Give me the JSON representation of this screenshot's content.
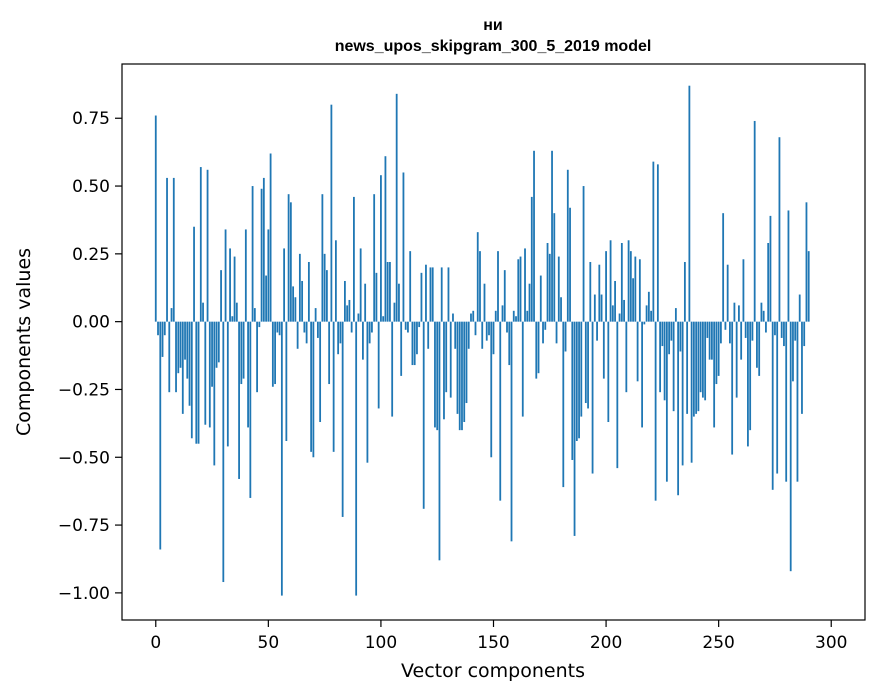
{
  "chart_data": {
    "type": "bar",
    "title_line1": "ни",
    "title_line2": "news_upos_skipgram_300_5_2019 model",
    "xlabel": "Vector components",
    "ylabel": "Components values",
    "xlim": [
      -15,
      315
    ],
    "ylim": [
      -1.1,
      0.95
    ],
    "xticks": [
      0,
      50,
      100,
      150,
      200,
      250,
      300
    ],
    "yticks": [
      0.75,
      0.5,
      0.25,
      0.0,
      -0.25,
      -0.5,
      -0.75,
      -1.0
    ],
    "ytick_labels": [
      "0.75",
      "0.50",
      "0.25",
      "0.00",
      "−0.25",
      "−0.50",
      "−0.75",
      "−1.00"
    ],
    "bar_color": "#1f77b4",
    "grid": false,
    "values": [
      0.76,
      -0.05,
      -0.84,
      -0.13,
      -0.05,
      0.53,
      -0.26,
      0.05,
      0.53,
      -0.26,
      -0.19,
      -0.17,
      -0.34,
      -0.14,
      -0.21,
      -0.31,
      -0.43,
      0.35,
      -0.45,
      -0.45,
      0.57,
      0.07,
      -0.38,
      0.56,
      -0.39,
      -0.24,
      -0.53,
      -0.17,
      -0.15,
      0.19,
      -0.96,
      0.34,
      -0.46,
      0.27,
      0.02,
      0.24,
      0.07,
      -0.58,
      -0.23,
      -0.21,
      0.34,
      -0.39,
      -0.65,
      0.5,
      0.05,
      -0.26,
      -0.02,
      0.49,
      0.53,
      0.17,
      0.34,
      0.62,
      -0.24,
      -0.23,
      -0.04,
      -0.05,
      -1.01,
      0.27,
      -0.44,
      0.47,
      0.44,
      0.13,
      0.09,
      -0.1,
      0.25,
      0.15,
      -0.04,
      -0.08,
      0.22,
      -0.48,
      -0.5,
      0.05,
      -0.06,
      -0.37,
      0.47,
      0.25,
      0.19,
      -0.23,
      0.8,
      -0.48,
      0.3,
      -0.12,
      -0.08,
      -0.72,
      0.15,
      0.06,
      0.08,
      -0.04,
      0.46,
      -1.01,
      0.03,
      0.27,
      -0.14,
      0.14,
      -0.52,
      -0.08,
      -0.04,
      0.47,
      0.18,
      -0.32,
      0.54,
      0.02,
      0.61,
      0.22,
      0.22,
      -0.35,
      0.07,
      0.84,
      0.14,
      -0.2,
      0.55,
      -0.03,
      -0.04,
      0.26,
      -0.16,
      -0.16,
      -0.12,
      -0.02,
      0.18,
      -0.69,
      0.21,
      -0.1,
      0.2,
      0.2,
      -0.39,
      -0.4,
      -0.88,
      0.2,
      -0.36,
      -0.26,
      0.2,
      -0.28,
      0.03,
      -0.1,
      -0.34,
      -0.4,
      -0.4,
      -0.37,
      -0.3,
      -0.1,
      0.03,
      0.04,
      -0.05,
      0.33,
      0.26,
      -0.1,
      0.14,
      -0.07,
      -0.05,
      -0.5,
      -0.12,
      0.04,
      0.26,
      -0.66,
      0.06,
      0.19,
      -0.04,
      -0.16,
      -0.81,
      0.04,
      0.02,
      0.23,
      0.24,
      -0.35,
      0.27,
      0.04,
      0.14,
      0.46,
      0.63,
      -0.21,
      -0.19,
      0.17,
      -0.08,
      -0.03,
      0.29,
      0.25,
      0.63,
      0.4,
      -0.08,
      0.24,
      0.09,
      -0.61,
      -0.11,
      0.56,
      0.42,
      -0.51,
      -0.79,
      -0.44,
      -0.43,
      -0.35,
      0.5,
      -0.3,
      -0.32,
      0.22,
      -0.56,
      0.1,
      -0.07,
      0.21,
      0.1,
      -0.21,
      0.26,
      -0.37,
      0.3,
      0.06,
      0.15,
      -0.54,
      0.03,
      0.29,
      0.08,
      -0.26,
      0.3,
      0.26,
      0.16,
      0.24,
      -0.22,
      0.23,
      -0.39,
      -0.01,
      0.06,
      0.11,
      0.04,
      0.59,
      -0.66,
      0.58,
      -0.26,
      -0.09,
      -0.29,
      -0.59,
      -0.12,
      -0.07,
      -0.33,
      0.05,
      -0.64,
      -0.11,
      -0.53,
      0.22,
      -0.34,
      0.87,
      -0.52,
      -0.35,
      -0.34,
      -0.33,
      -0.26,
      -0.28,
      -0.29,
      -0.06,
      -0.14,
      -0.14,
      -0.39,
      -0.23,
      -0.2,
      -0.08,
      0.4,
      -0.03,
      0.21,
      -0.08,
      -0.49,
      0.07,
      -0.28,
      0.06,
      -0.14,
      0.23,
      -0.06,
      -0.46,
      -0.4,
      -0.07,
      0.74,
      -0.17,
      -0.2,
      0.07,
      0.04,
      -0.04,
      0.29,
      0.39,
      -0.62,
      -0.05,
      -0.56,
      0.68,
      -0.06,
      -0.09,
      -0.59,
      0.41,
      -0.92,
      -0.22,
      -0.07,
      -0.59,
      0.1,
      -0.34,
      -0.09,
      0.44,
      0.26
    ]
  }
}
